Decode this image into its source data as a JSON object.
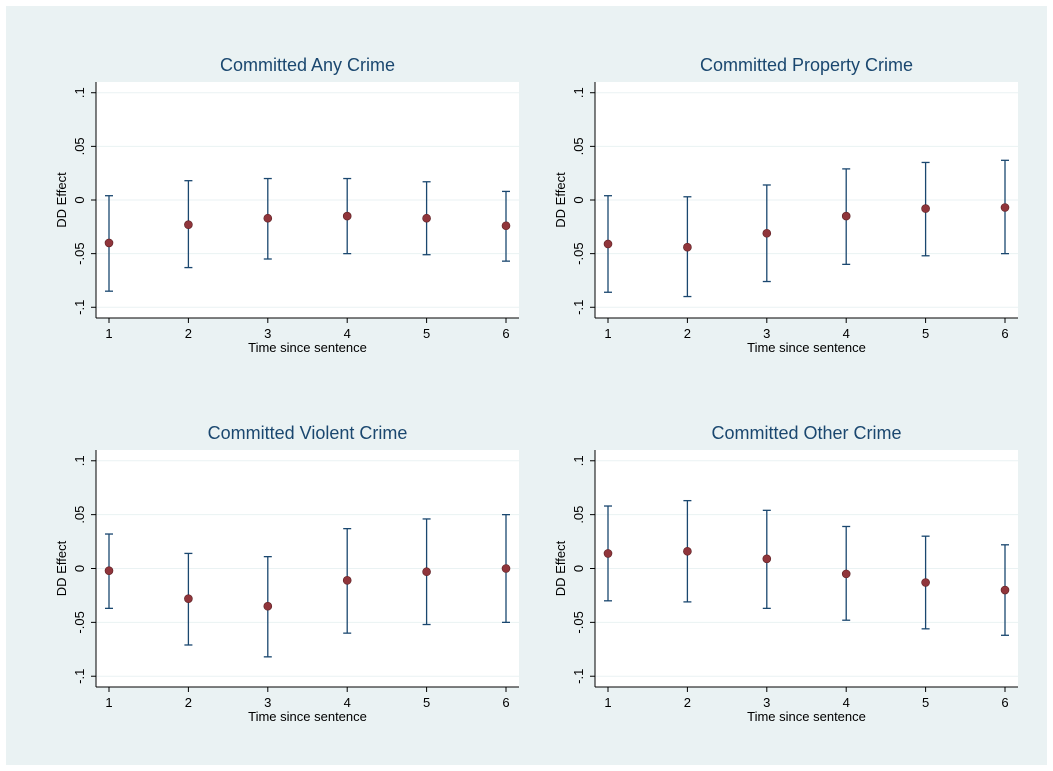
{
  "colors": {
    "figure_bg": "#eaf2f3",
    "plot_bg": "#ffffff",
    "grid": "#eaf2f3",
    "title": "#1a476f",
    "ci": "#1a476f",
    "point": "#90353b"
  },
  "chart_data": [
    {
      "type": "scatter",
      "title": "Committed Any Crime",
      "xlabel": "Time since sentence",
      "ylabel": "DD Effect",
      "x": [
        1,
        2,
        3,
        4,
        5,
        6
      ],
      "x_ticks": [
        "1",
        "2",
        "3",
        "4",
        "5",
        "6"
      ],
      "y_ticks": [
        {
          "value": 0.1,
          "label": ".1"
        },
        {
          "value": 0.05,
          "label": ".05"
        },
        {
          "value": 0,
          "label": "0"
        },
        {
          "value": -0.05,
          "label": "-.05"
        },
        {
          "value": -0.1,
          "label": "-.1"
        }
      ],
      "ylim": [
        -0.11,
        0.11
      ],
      "grid": true,
      "series": [
        {
          "estimate": [
            -0.04,
            -0.023,
            -0.017,
            -0.015,
            -0.017,
            -0.024
          ],
          "ci_low": [
            -0.085,
            -0.063,
            -0.055,
            -0.05,
            -0.051,
            -0.057
          ],
          "ci_high": [
            0.004,
            0.018,
            0.02,
            0.02,
            0.017,
            0.008
          ]
        }
      ]
    },
    {
      "type": "scatter",
      "title": "Committed Property Crime",
      "xlabel": "Time since sentence",
      "ylabel": "DD Effect",
      "x": [
        1,
        2,
        3,
        4,
        5,
        6
      ],
      "x_ticks": [
        "1",
        "2",
        "3",
        "4",
        "5",
        "6"
      ],
      "y_ticks": [
        {
          "value": 0.1,
          "label": ".1"
        },
        {
          "value": 0.05,
          "label": ".05"
        },
        {
          "value": 0,
          "label": "0"
        },
        {
          "value": -0.05,
          "label": "-.05"
        },
        {
          "value": -0.1,
          "label": "-.1"
        }
      ],
      "ylim": [
        -0.11,
        0.11
      ],
      "grid": true,
      "series": [
        {
          "estimate": [
            -0.041,
            -0.044,
            -0.031,
            -0.015,
            -0.008,
            -0.007
          ],
          "ci_low": [
            -0.086,
            -0.09,
            -0.076,
            -0.06,
            -0.052,
            -0.05
          ],
          "ci_high": [
            0.004,
            0.003,
            0.014,
            0.029,
            0.035,
            0.037
          ]
        }
      ]
    },
    {
      "type": "scatter",
      "title": "Committed Violent Crime",
      "xlabel": "Time since sentence",
      "ylabel": "DD Effect",
      "x": [
        1,
        2,
        3,
        4,
        5,
        6
      ],
      "x_ticks": [
        "1",
        "2",
        "3",
        "4",
        "5",
        "6"
      ],
      "y_ticks": [
        {
          "value": 0.1,
          "label": ".1"
        },
        {
          "value": 0.05,
          "label": ".05"
        },
        {
          "value": 0,
          "label": "0"
        },
        {
          "value": -0.05,
          "label": "-.05"
        },
        {
          "value": -0.1,
          "label": "-.1"
        }
      ],
      "ylim": [
        -0.11,
        0.11
      ],
      "grid": true,
      "series": [
        {
          "estimate": [
            -0.002,
            -0.028,
            -0.035,
            -0.011,
            -0.003,
            0.0
          ],
          "ci_low": [
            -0.037,
            -0.071,
            -0.082,
            -0.06,
            -0.052,
            -0.05
          ],
          "ci_high": [
            0.032,
            0.014,
            0.011,
            0.037,
            0.046,
            0.05
          ]
        }
      ]
    },
    {
      "type": "scatter",
      "title": "Committed Other Crime",
      "xlabel": "Time since sentence",
      "ylabel": "DD Effect",
      "x": [
        1,
        2,
        3,
        4,
        5,
        6
      ],
      "x_ticks": [
        "1",
        "2",
        "3",
        "4",
        "5",
        "6"
      ],
      "y_ticks": [
        {
          "value": 0.1,
          "label": ".1"
        },
        {
          "value": 0.05,
          "label": ".05"
        },
        {
          "value": 0,
          "label": "0"
        },
        {
          "value": -0.05,
          "label": "-.05"
        },
        {
          "value": -0.1,
          "label": "-.1"
        }
      ],
      "ylim": [
        -0.11,
        0.11
      ],
      "grid": true,
      "series": [
        {
          "estimate": [
            0.014,
            0.016,
            0.009,
            -0.005,
            -0.013,
            -0.02
          ],
          "ci_low": [
            -0.03,
            -0.031,
            -0.037,
            -0.048,
            -0.056,
            -0.062
          ],
          "ci_high": [
            0.058,
            0.063,
            0.054,
            0.039,
            0.03,
            0.022
          ]
        }
      ]
    }
  ]
}
